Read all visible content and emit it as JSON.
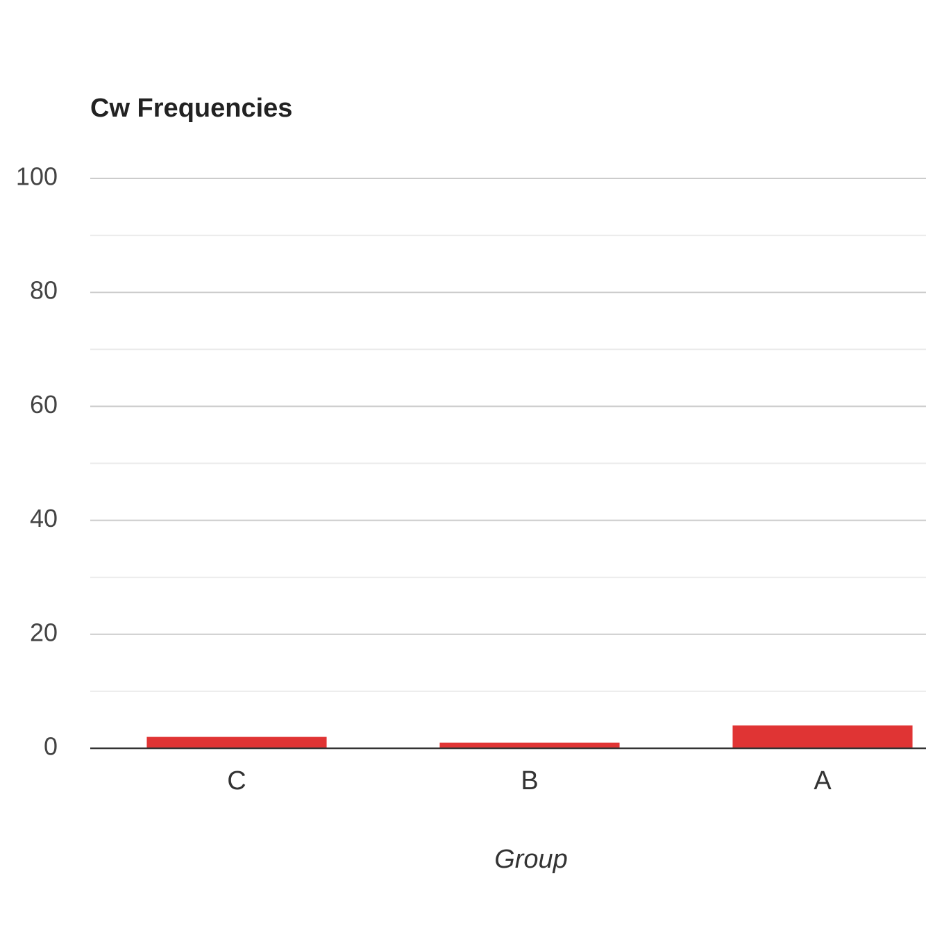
{
  "chart_data": {
    "type": "bar",
    "title": "Cw Frequencies",
    "x_label": "Group",
    "categories": [
      "C",
      "B",
      "A"
    ],
    "values": [
      2,
      1,
      4
    ],
    "color": "#e03434",
    "ylim": [
      0,
      100
    ],
    "yticks": [
      0,
      20,
      40,
      60,
      80,
      100
    ],
    "minor_yticks": [
      10,
      30,
      50,
      70,
      90
    ],
    "grid": true
  }
}
